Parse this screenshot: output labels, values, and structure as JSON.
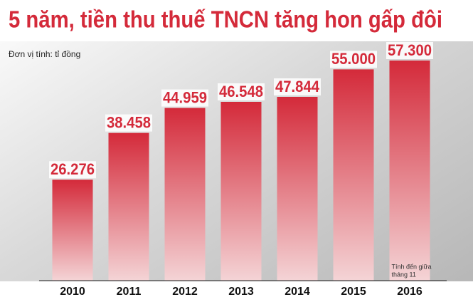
{
  "chart_data": {
    "type": "bar",
    "title": "5 năm, tiền thu thuế TNCN tăng hon gấp đôi",
    "subtitle": "Đơn vị tính: tỉ đồng",
    "categories": [
      "2010",
      "2011",
      "2012",
      "2013",
      "2014",
      "2015",
      "2016"
    ],
    "values": [
      26276,
      38458,
      44959,
      46548,
      47844,
      55000,
      57300
    ],
    "value_labels": [
      "26.276",
      "38.458",
      "44.959",
      "46.548",
      "47.844",
      "55.000",
      "57.300"
    ],
    "color": "#d42a3a",
    "annotation": [
      "Tính đến giữa",
      "tháng 11"
    ]
  }
}
